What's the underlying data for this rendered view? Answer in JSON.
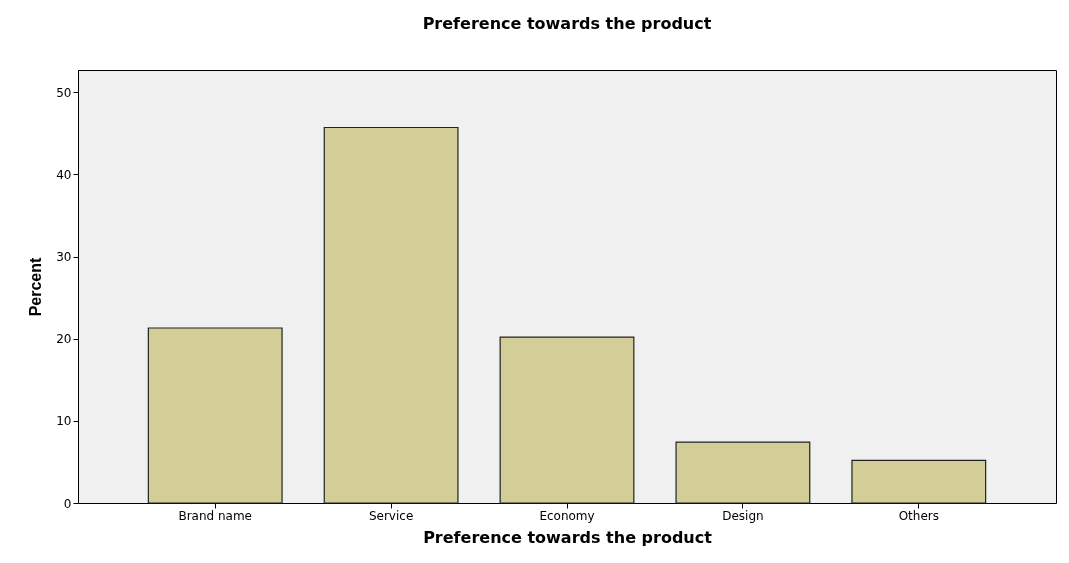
{
  "chart_data": {
    "type": "bar",
    "title": "Preference towards the product",
    "xlabel": "Preference towards the product",
    "ylabel": "Percent",
    "categories": [
      "Brand name",
      "Service",
      "Economy",
      "Design",
      "Others"
    ],
    "values": [
      21.3,
      45.7,
      20.2,
      7.4,
      5.2
    ],
    "color": "#d3cd98",
    "ylim": [
      0,
      52.7
    ],
    "yticks": [
      0,
      10,
      20,
      30,
      40,
      50
    ],
    "grid": false
  }
}
